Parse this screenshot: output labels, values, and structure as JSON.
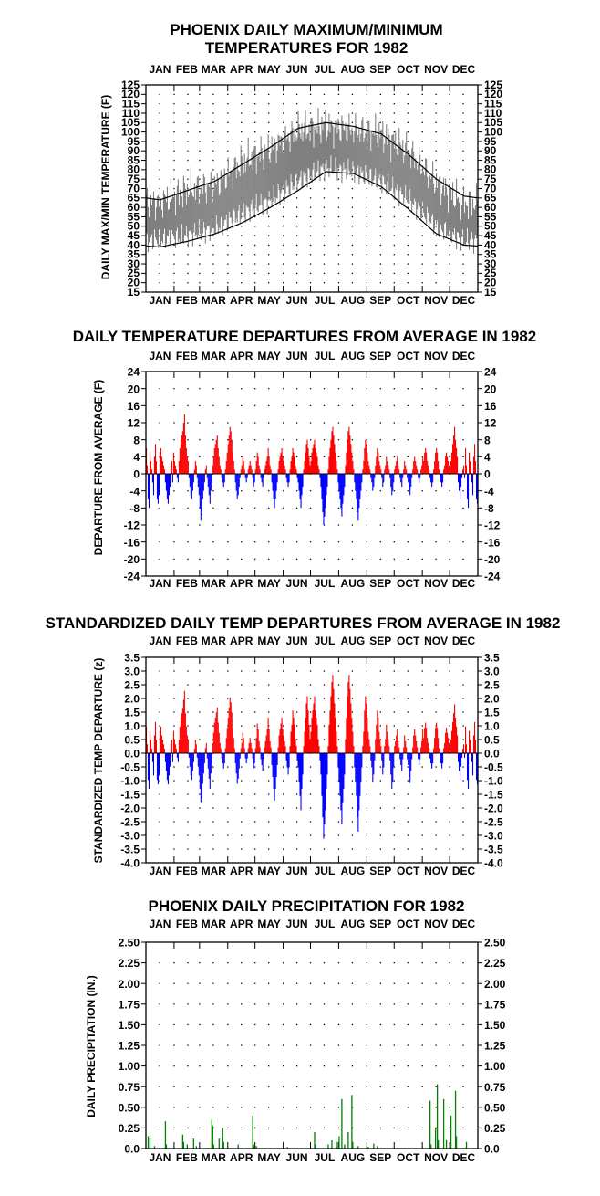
{
  "months": [
    "JAN",
    "FEB",
    "MAR",
    "APR",
    "MAY",
    "JUN",
    "JUL",
    "AUG",
    "SEP",
    "OCT",
    "NOV",
    "DEC"
  ],
  "colors": {
    "band": "#808080",
    "pos": "#ff0000",
    "neg": "#0000ff",
    "precip": "#008000",
    "line": "#000000"
  },
  "chart_data": [
    {
      "type": "area",
      "title_lines": [
        "PHOENIX DAILY MAXIMUM/MINIMUM",
        "TEMPERATURES FOR 1982"
      ],
      "ylabel": "DAILY MAX/MIN TEMPERATURE (F)",
      "ylim": [
        15,
        125
      ],
      "yticks": [
        "15",
        "20",
        "25",
        "30",
        "35",
        "40",
        "45",
        "50",
        "55",
        "60",
        "65",
        "70",
        "75",
        "80",
        "85",
        "90",
        "95",
        "100",
        "105",
        "110",
        "115",
        "120",
        "125"
      ],
      "grid": true,
      "normal_max_monthly": [
        64,
        69,
        74,
        83,
        92,
        102,
        105,
        103,
        99,
        88,
        75,
        66
      ],
      "normal_min_monthly": [
        39,
        42,
        46,
        52,
        60,
        69,
        79,
        78,
        71,
        59,
        46,
        40
      ],
      "series": [
        {
          "values_max_monthly": [
            63,
            69,
            72,
            84,
            91,
            101,
            103,
            101,
            99,
            90,
            73,
            62
          ]
        },
        {
          "values_min_monthly": [
            43,
            45,
            49,
            57,
            64,
            74,
            81,
            79,
            74,
            64,
            50,
            42
          ]
        }
      ]
    },
    {
      "type": "bar",
      "title": "DAILY TEMPERATURE DEPARTURES FROM AVERAGE IN 1982",
      "ylabel": "DEPARTURE FROM AVERAGE (F)",
      "ylim": [
        -24,
        24
      ],
      "yticks": [
        "-24",
        "-20",
        "-16",
        "-12",
        "-8",
        "-4",
        "0",
        "4",
        "8",
        "12",
        "16",
        "20",
        "24"
      ],
      "grid": true,
      "values": [
        6,
        2,
        -6,
        -8,
        5,
        3,
        1,
        -2,
        -5,
        4,
        7,
        3,
        -6,
        -7,
        -5,
        5,
        6,
        4,
        3,
        2,
        1,
        -2,
        -4,
        -6,
        -7,
        -5,
        -3,
        2,
        3,
        -2,
        5,
        3,
        2,
        1,
        -1,
        -2,
        3,
        6,
        8,
        9,
        10,
        12,
        14,
        9,
        6,
        4,
        3,
        -1,
        -3,
        -5,
        -6,
        -4,
        -2,
        1,
        3,
        2,
        -1,
        -3,
        -5,
        -8,
        -11,
        -9,
        -6,
        -4,
        -2,
        1,
        2,
        -1,
        -3,
        -5,
        -7,
        -4,
        -2,
        2,
        4,
        6,
        7,
        8,
        9,
        6,
        4,
        2,
        1,
        -1,
        -2,
        -3,
        -2,
        1,
        3,
        5,
        7,
        9,
        11,
        10,
        8,
        5,
        3,
        1,
        -2,
        -4,
        -6,
        -5,
        -3,
        -1,
        1,
        2,
        4,
        3,
        1,
        -1,
        -2,
        -1,
        1,
        2,
        3,
        2,
        1,
        -1,
        -3,
        -2,
        1,
        3,
        5,
        4,
        2,
        1,
        -1,
        -2,
        -3,
        -1,
        1,
        2,
        3,
        4,
        6,
        4,
        2,
        1,
        -2,
        -4,
        -6,
        -8,
        -6,
        -4,
        -2,
        1,
        3,
        4,
        5,
        6,
        4,
        3,
        2,
        1,
        -1,
        -2,
        -3,
        -2,
        1,
        3,
        4,
        6,
        5,
        4,
        2,
        1,
        -1,
        -2,
        -4,
        -6,
        -8,
        -5,
        -3,
        1,
        3,
        5,
        7,
        8,
        6,
        4,
        2,
        3,
        5,
        6,
        7,
        8,
        6,
        5,
        4,
        2,
        1,
        -1,
        -3,
        -6,
        -9,
        -12,
        -10,
        -8,
        -5,
        -3,
        1,
        4,
        6,
        8,
        10,
        11,
        9,
        7,
        5,
        3,
        1,
        -2,
        -4,
        -6,
        -8,
        -10,
        -7,
        -5,
        -3,
        2,
        5,
        8,
        10,
        11,
        9,
        7,
        5,
        3,
        1,
        -2,
        -4,
        -6,
        -9,
        -11,
        -8,
        -6,
        -4,
        -2,
        1,
        3,
        6,
        8,
        7,
        5,
        3,
        2,
        1,
        -1,
        -2,
        -4,
        -3,
        -1,
        2,
        4,
        6,
        5,
        3,
        2,
        1,
        -1,
        -3,
        -2,
        1,
        2,
        4,
        3,
        2,
        1,
        -1,
        -3,
        -5,
        -4,
        -2,
        1,
        2,
        3,
        4,
        2,
        1,
        -1,
        -2,
        -3,
        -1,
        1,
        3,
        2,
        1,
        -1,
        -2,
        -4,
        -5,
        -3,
        -1,
        1,
        3,
        4,
        3,
        2,
        1,
        -1,
        -2,
        -1,
        1,
        2,
        4,
        3,
        5,
        6,
        5,
        3,
        2,
        1,
        -1,
        -2,
        -3,
        -2,
        1,
        3,
        5,
        6,
        5,
        3,
        1,
        -1,
        -2,
        -3,
        -2,
        1,
        2,
        4,
        5,
        4,
        3,
        2,
        1,
        3,
        5,
        7,
        9,
        11,
        8,
        6,
        4,
        -2,
        -4,
        -6,
        -3,
        -1,
        1,
        2,
        -1
      ],
      "values_note_only": "daily departures Jan 1 - Dec 31"
    },
    {
      "type": "bar",
      "title": "STANDARDIZED DAILY TEMP DEPARTURES FROM AVERAGE IN 1982",
      "ylabel": "STANDARDIZED TEMP DEPARTURE (z)",
      "ylim": [
        -4.0,
        3.5
      ],
      "yticks": [
        "-4.0",
        "-3.5",
        "-3.0",
        "-2.5",
        "-2.0",
        "-1.5",
        "-1.0",
        "-0.5",
        "0.0",
        "0.5",
        "1.0",
        "1.5",
        "2.0",
        "2.5",
        "3.0",
        "3.5"
      ],
      "grid": true
    },
    {
      "type": "bar",
      "title": "PHOENIX DAILY PRECIPITATION FOR 1982",
      "ylabel": "DAILY PRECIPITATION (IN.)",
      "ylim": [
        0,
        2.5
      ],
      "yticks": [
        "0.0",
        "0.25",
        "0.50",
        "0.75",
        "1.00",
        "1.25",
        "1.50",
        "1.75",
        "2.00",
        "2.25",
        "2.50"
      ],
      "grid": true,
      "events": [
        [
          2,
          0.15
        ],
        [
          4,
          0.12
        ],
        [
          9,
          0.03
        ],
        [
          21,
          0.33
        ],
        [
          22,
          0.05
        ],
        [
          40,
          0.17
        ],
        [
          41,
          0.08
        ],
        [
          45,
          0.05
        ],
        [
          52,
          0.12
        ],
        [
          55,
          0.03
        ],
        [
          72,
          0.35
        ],
        [
          73,
          0.28
        ],
        [
          74,
          0.05
        ],
        [
          80,
          0.12
        ],
        [
          84,
          0.25
        ],
        [
          85,
          0.08
        ],
        [
          101,
          0.05
        ],
        [
          117,
          0.4
        ],
        [
          118,
          0.05
        ],
        [
          121,
          0.03
        ],
        [
          155,
          0.02
        ],
        [
          185,
          0.2
        ],
        [
          186,
          0.05
        ],
        [
          200,
          0.05
        ],
        [
          204,
          0.1
        ],
        [
          210,
          0.08
        ],
        [
          212,
          0.15
        ],
        [
          215,
          0.6
        ],
        [
          218,
          0.05
        ],
        [
          222,
          0.2
        ],
        [
          226,
          0.65
        ],
        [
          227,
          0.08
        ],
        [
          233,
          0.03
        ],
        [
          244,
          0.02
        ],
        [
          250,
          0.06
        ],
        [
          254,
          0.03
        ],
        [
          312,
          0.58
        ],
        [
          313,
          0.05
        ],
        [
          318,
          0.25
        ],
        [
          320,
          0.78
        ],
        [
          321,
          0.1
        ],
        [
          327,
          0.6
        ],
        [
          330,
          0.1
        ],
        [
          335,
          0.4
        ],
        [
          340,
          0.7
        ],
        [
          341,
          0.15
        ],
        [
          352,
          0.08
        ]
      ]
    }
  ]
}
